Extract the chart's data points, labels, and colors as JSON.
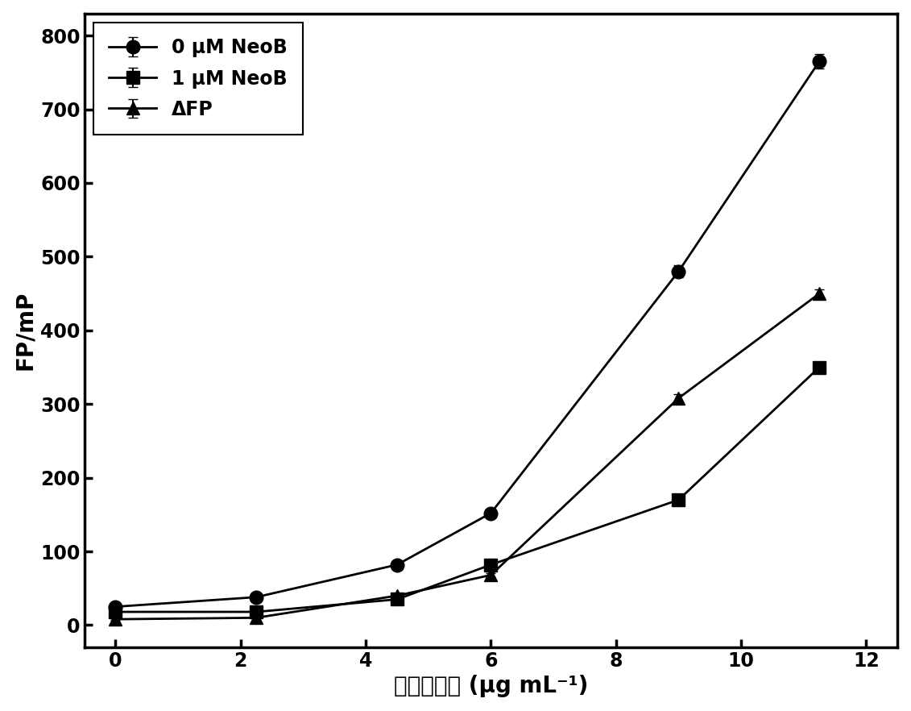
{
  "series": [
    {
      "label": "0 μM NeoB",
      "x": [
        0,
        2.25,
        4.5,
        6.0,
        9.0,
        11.25
      ],
      "y": [
        25,
        38,
        82,
        152,
        480,
        765
      ],
      "yerr": [
        3,
        3,
        5,
        5,
        8,
        10
      ],
      "marker": "o",
      "markersize": 12,
      "linewidth": 2.0
    },
    {
      "label": "1 μM NeoB",
      "x": [
        0,
        2.25,
        4.5,
        6.0,
        9.0,
        11.25
      ],
      "y": [
        18,
        18,
        35,
        82,
        170,
        350
      ],
      "yerr": [
        2,
        2,
        3,
        4,
        5,
        6
      ],
      "marker": "s",
      "markersize": 11,
      "linewidth": 2.0
    },
    {
      "label": "ΔFP",
      "x": [
        0,
        2.25,
        4.5,
        6.0,
        9.0,
        11.25
      ],
      "y": [
        8,
        10,
        40,
        68,
        308,
        450
      ],
      "yerr": [
        1,
        1,
        3,
        3,
        5,
        6
      ],
      "marker": "^",
      "markersize": 11,
      "linewidth": 2.0
    }
  ],
  "xlabel": "氧化石墨烯 (μg mL⁻¹)",
  "ylabel": "FP/mP",
  "xlim": [
    -0.5,
    12.5
  ],
  "ylim": [
    -30,
    830
  ],
  "xticks": [
    0,
    2,
    4,
    6,
    8,
    10,
    12
  ],
  "yticks": [
    0,
    100,
    200,
    300,
    400,
    500,
    600,
    700,
    800
  ],
  "line_color": "#000000",
  "background_color": "#ffffff",
  "legend_fontsize": 17,
  "axis_fontsize": 20,
  "tick_fontsize": 17,
  "xlabel_fontsize": 20
}
